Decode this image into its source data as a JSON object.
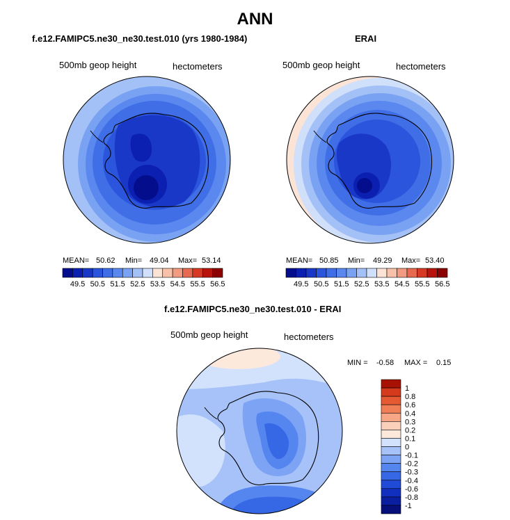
{
  "title": "ANN",
  "panels": [
    {
      "title": "f.e12.FAMIPC5.ne30_ne30.test.010 (yrs 1980-1984)",
      "variable_label": "500mb geop height",
      "units_label": "hectometers",
      "stats": {
        "mean_label": "MEAN=",
        "mean": "50.62",
        "min_label": "Min=",
        "min": "49.04",
        "max_label": "Max=",
        "max": "53.14"
      },
      "colorbar_ticks": [
        "49.5",
        "50.5",
        "51.5",
        "52.5",
        "53.5",
        "54.5",
        "55.5",
        "56.5"
      ]
    },
    {
      "title": "ERAI",
      "variable_label": "500mb geop height",
      "units_label": "hectometers",
      "stats": {
        "mean_label": "MEAN=",
        "mean": "50.85",
        "min_label": "Min=",
        "min": "49.29",
        "max_label": "Max=",
        "max": "53.40"
      },
      "colorbar_ticks": [
        "49.5",
        "50.5",
        "51.5",
        "52.5",
        "53.5",
        "54.5",
        "55.5",
        "56.5"
      ]
    },
    {
      "title": "f.e12.FAMIPC5.ne30_ne30.test.010 - ERAI",
      "variable_label": "500mb geop height",
      "units_label": "hectometers",
      "stats": {
        "min_label": "MIN =",
        "min": "-0.58",
        "max_label": "MAX =",
        "max": "0.15"
      },
      "colorbar_ticks": [
        "1",
        "0.8",
        "0.6",
        "0.4",
        "0.3",
        "0.2",
        "0.1",
        "0",
        "-0.1",
        "-0.2",
        "-0.3",
        "-0.4",
        "-0.6",
        "-0.8",
        "-1"
      ]
    }
  ],
  "colors": {
    "abs_scale": [
      "#040e8c",
      "#0b1fb0",
      "#1a38c8",
      "#2b55dc",
      "#3f6ee6",
      "#5a88ee",
      "#7aa2f3",
      "#a3c0f7",
      "#d0e0fb",
      "#fbe3d6",
      "#f8c2aa",
      "#f29b80",
      "#e76a50",
      "#d63a24",
      "#b8140c",
      "#8b0000"
    ],
    "diff_scale": [
      "#070f7a",
      "#0a1fa0",
      "#1230c0",
      "#1f4bd8",
      "#3668e6",
      "#5585ef",
      "#7da3f4",
      "#a7c2f8",
      "#d2e2fc",
      "#fde8dc",
      "#fbd0ba",
      "#f7a686",
      "#f07f58",
      "#e55a33",
      "#d43a1b",
      "#a81204"
    ]
  }
}
